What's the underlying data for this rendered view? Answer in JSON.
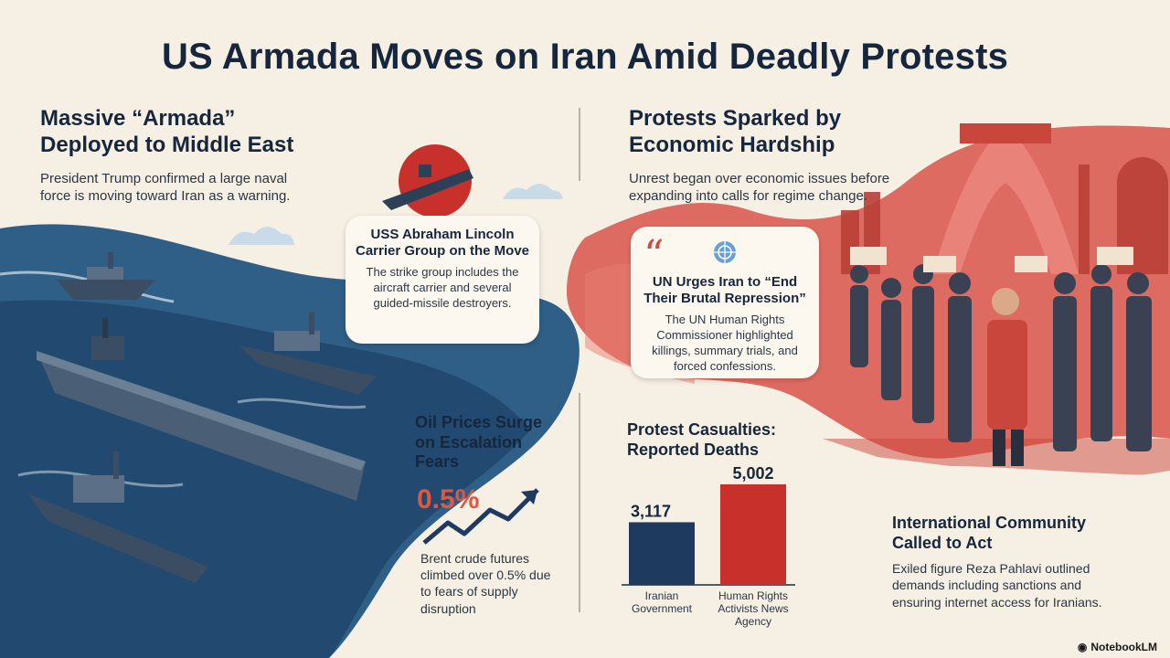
{
  "title": "US Armada Moves on Iran Amid Deadly Protests",
  "armada": {
    "title_line1": "Massive “Armada”",
    "title_line2": "Deployed to Middle East",
    "text": "President Trump confirmed a large naval force is moving toward Iran as a warning."
  },
  "lincoln": {
    "title": "USS Abraham Lincoln Carrier Group on the Move",
    "text": "The strike group includes the aircraft carrier and several guided-missile destroyers."
  },
  "oil": {
    "title": "Oil Prices Surge on Escalation Fears",
    "value": "0.5%",
    "text": "Brent crude futures climbed over 0.5% due to fears of supply disruption"
  },
  "protests": {
    "title_line1": "Protests Sparked by",
    "title_line2": "Economic Hardship",
    "text": "Unrest began over economic issues before expanding into calls for regime change."
  },
  "un": {
    "title": "UN Urges Iran to “End Their Brutal Repression”",
    "text": "The UN Human Rights Commissioner highlighted killings, summary trials, and forced confessions."
  },
  "casualties": {
    "title_line1": "Protest Casualties:",
    "title_line2": "Reported Deaths"
  },
  "chart_data": {
    "type": "bar",
    "title": "Protest Casualties: Reported Deaths",
    "categories": [
      "Iranian Government",
      "Human Rights Activists News Agency"
    ],
    "values": [
      3117,
      5002
    ],
    "value_labels": [
      "3,117",
      "5,002"
    ],
    "colors": [
      "#1f3a5f",
      "#c8312b"
    ],
    "ylim": [
      0,
      5002
    ]
  },
  "international": {
    "title_line1": "International Community",
    "title_line2": "Called to Act",
    "text": "Exiled figure Reza Pahlavi outlined demands including sanctions and ensuring internet access for Iranians."
  },
  "brand": "NotebookLM",
  "colors": {
    "navy": "#16263d",
    "sea": "#2f5f86",
    "red": "#c8312b",
    "cream": "#f6efe3"
  }
}
